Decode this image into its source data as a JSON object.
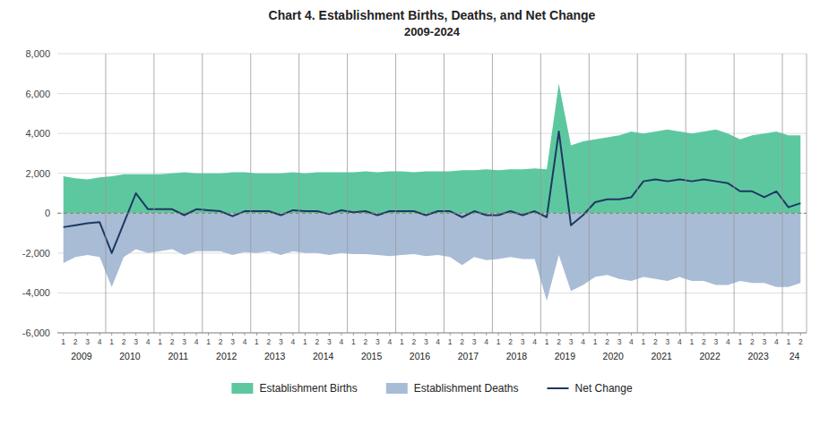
{
  "chart_data": {
    "type": "area",
    "title": "Chart 4. Establishment Births, Deaths, and Net Change",
    "subtitle": "2009-2024",
    "categories": [
      "1",
      "2",
      "3",
      "4",
      "1",
      "2",
      "3",
      "4",
      "1",
      "2",
      "3",
      "4",
      "1",
      "2",
      "3",
      "4",
      "1",
      "2",
      "3",
      "4",
      "1",
      "2",
      "3",
      "4",
      "1",
      "2",
      "3",
      "4",
      "1",
      "2",
      "3",
      "4",
      "1",
      "2",
      "3",
      "4",
      "1",
      "2",
      "3",
      "4",
      "1",
      "2",
      "3",
      "4",
      "1",
      "2",
      "3",
      "4",
      "1",
      "2",
      "3",
      "4",
      "1",
      "2",
      "3",
      "4",
      "1",
      "2",
      "3",
      "4",
      "1",
      "2"
    ],
    "groups": [
      {
        "label": "2009",
        "count": 4
      },
      {
        "label": "2010",
        "count": 4
      },
      {
        "label": "2011",
        "count": 4
      },
      {
        "label": "2012",
        "count": 4
      },
      {
        "label": "2013",
        "count": 4
      },
      {
        "label": "2014",
        "count": 4
      },
      {
        "label": "2015",
        "count": 4
      },
      {
        "label": "2016",
        "count": 4
      },
      {
        "label": "2017",
        "count": 4
      },
      {
        "label": "2018",
        "count": 4
      },
      {
        "label": "2019",
        "count": 4
      },
      {
        "label": "2020",
        "count": 4
      },
      {
        "label": "2021",
        "count": 4
      },
      {
        "label": "2022",
        "count": 4
      },
      {
        "label": "2023",
        "count": 4
      },
      {
        "label": "24",
        "count": 2
      }
    ],
    "series": [
      {
        "name": "Establishment Births",
        "type": "area",
        "color": "#5dc8a0",
        "values": [
          1850,
          1750,
          1700,
          1800,
          1850,
          1950,
          1950,
          1950,
          1950,
          2000,
          2050,
          2000,
          2000,
          2000,
          2050,
          2050,
          2000,
          2000,
          2000,
          2050,
          2000,
          2050,
          2050,
          2050,
          2050,
          2100,
          2050,
          2100,
          2100,
          2050,
          2100,
          2100,
          2100,
          2150,
          2150,
          2200,
          2150,
          2200,
          2200,
          2250,
          2200,
          6500,
          3400,
          3600,
          3700,
          3800,
          3900,
          4100,
          4000,
          4100,
          4200,
          4100,
          4000,
          4100,
          4200,
          4000,
          3700,
          3900,
          4000,
          4100,
          3900,
          3900
        ]
      },
      {
        "name": "Establishment Deaths",
        "type": "area",
        "color": "#a8bcd6",
        "values": [
          -2500,
          -2200,
          -2100,
          -2200,
          -3700,
          -2200,
          -1800,
          -2000,
          -1900,
          -1800,
          -2100,
          -1900,
          -1900,
          -1900,
          -2100,
          -1950,
          -2000,
          -1900,
          -2100,
          -1900,
          -2000,
          -2000,
          -2100,
          -2000,
          -2050,
          -2050,
          -2100,
          -2150,
          -2100,
          -2050,
          -2150,
          -2100,
          -2200,
          -2600,
          -2200,
          -2350,
          -2300,
          -2200,
          -2300,
          -2300,
          -4400,
          -2100,
          -3900,
          -3600,
          -3200,
          -3100,
          -3300,
          -3400,
          -3200,
          -3300,
          -3400,
          -3200,
          -3400,
          -3400,
          -3600,
          -3600,
          -3400,
          -3500,
          -3500,
          -3700,
          -3700,
          -3500
        ]
      },
      {
        "name": "Net Change",
        "type": "line",
        "color": "#1f3864",
        "values": [
          -700,
          -600,
          -500,
          -450,
          -2000,
          -500,
          1000,
          200,
          200,
          200,
          -100,
          200,
          150,
          100,
          -150,
          100,
          100,
          100,
          -100,
          150,
          100,
          100,
          -50,
          150,
          50,
          100,
          -100,
          100,
          100,
          100,
          -100,
          100,
          100,
          -200,
          100,
          -100,
          -100,
          100,
          -100,
          100,
          -200,
          4100,
          -600,
          -100,
          550,
          700,
          700,
          800,
          1600,
          1700,
          1600,
          1700,
          1600,
          1700,
          1600,
          1500,
          1100,
          1100,
          800,
          1100,
          300,
          500
        ]
      }
    ],
    "ylim": [
      -6000,
      8000
    ],
    "yticks": [
      {
        "value": -6000,
        "label": "-6,000"
      },
      {
        "value": -4000,
        "label": "-4,000"
      },
      {
        "value": -2000,
        "label": "-2,000"
      },
      0,
      {
        "value": 2000,
        "label": "2,000"
      },
      {
        "value": 4000,
        "label": "4,000"
      },
      {
        "value": 6000,
        "label": "6,000"
      },
      {
        "value": 8000,
        "label": "8,000"
      }
    ],
    "grid": true,
    "legend": "bottom"
  }
}
